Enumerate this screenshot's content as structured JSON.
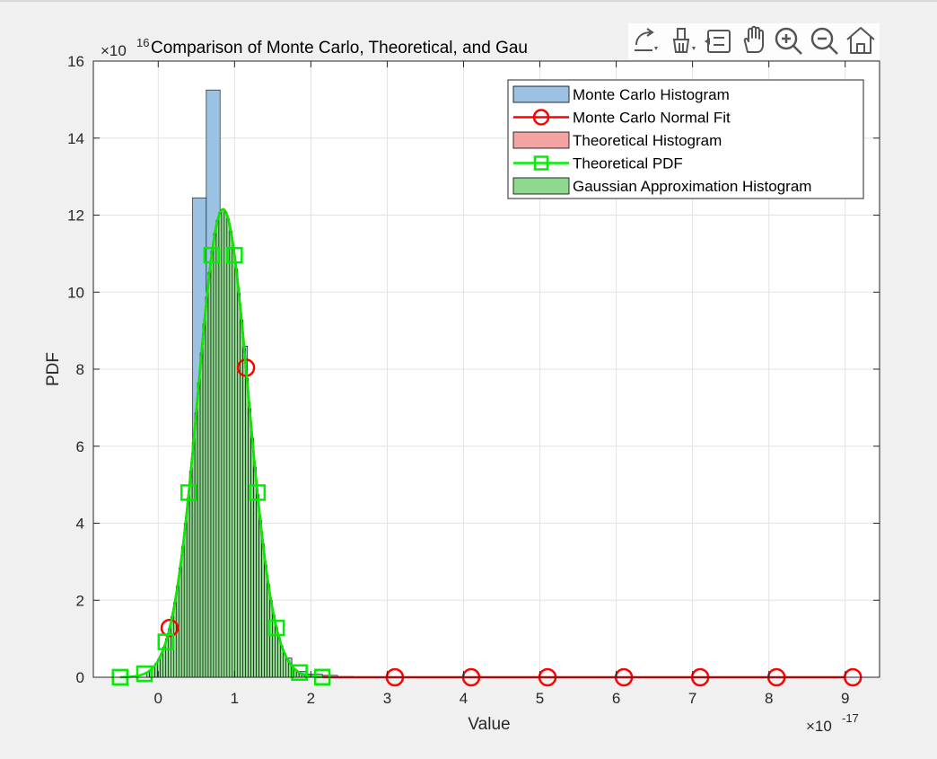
{
  "figure": {
    "toolbar": {
      "buttons": [
        {
          "name": "export-icon"
        },
        {
          "name": "brush-icon"
        },
        {
          "name": "datatip-icon"
        },
        {
          "name": "pan-hand-icon"
        },
        {
          "name": "zoom-in-icon"
        },
        {
          "name": "zoom-out-icon"
        },
        {
          "name": "home-icon"
        }
      ]
    }
  },
  "chart_data": {
    "type": "bar",
    "title": "Comparison of Monte Carlo, Theoretical, and Gau",
    "xlabel": "Value",
    "ylabel": "PDF",
    "x_multiplier": {
      "base": "×10",
      "exponent": "-17"
    },
    "y_multiplier": {
      "base": "×10",
      "exponent": "16"
    },
    "xlim": [
      -0.85,
      9.45
    ],
    "ylim": [
      0,
      16
    ],
    "x_ticks": [
      0,
      1,
      2,
      3,
      4,
      5,
      6,
      7,
      8,
      9
    ],
    "y_ticks": [
      0,
      2,
      4,
      6,
      8,
      10,
      12,
      14,
      16
    ],
    "grid": true,
    "legend_position": "top-right",
    "colors": {
      "monte_carlo_hist": "#9bc2e2",
      "normal_fit": "#ff0000",
      "theoretical_hist": "#f4a3a3",
      "theoretical_pdf": "#00ee00",
      "gaussian_hist": "#8fd88f",
      "edge": "#000000"
    },
    "legend": [
      {
        "label": "Monte Carlo Histogram",
        "kind": "patch",
        "color": "#9bc2e2"
      },
      {
        "label": "Monte Carlo Normal Fit",
        "kind": "line-circle",
        "color": "#ff0000"
      },
      {
        "label": "Theoretical Histogram",
        "kind": "patch",
        "color": "#f4a3a3"
      },
      {
        "label": "Theoretical PDF",
        "kind": "line-square",
        "color": "#00ee00"
      },
      {
        "label": "Gaussian Approximation Histogram",
        "kind": "patch",
        "color": "#8fd88f"
      }
    ],
    "monte_carlo_histogram": {
      "bin_edges": [
        -0.1,
        0.1,
        0.25,
        0.45,
        0.63,
        0.81,
        0.99,
        1.17,
        1.35,
        1.55,
        1.75,
        1.95,
        2.15,
        2.35,
        2.55
      ],
      "values": [
        0.1,
        0.75,
        2.2,
        12.45,
        15.25,
        11.0,
        8.6,
        3.55,
        1.2,
        0.5,
        0.15,
        0.08,
        0.05,
        0.02
      ]
    },
    "gaussian_histogram": {
      "bin_width": 0.035,
      "x_start": -0.15,
      "x_end": 1.95,
      "mean": 0.85,
      "sd": 0.33,
      "peak": 12.15
    },
    "monte_carlo_normal_fit": {
      "mean": 0.85,
      "sd": 0.33,
      "peak": 12.15,
      "line_x_range": [
        0,
        9
      ],
      "markers_x": [
        0.15,
        1.15,
        3.1,
        4.1,
        5.1,
        6.1,
        7.1,
        8.1,
        9.1
      ]
    },
    "theoretical_pdf": {
      "mean": 0.85,
      "sd": 0.33,
      "peak": 12.15,
      "x_range": [
        -0.5,
        2.15
      ],
      "markers_x": [
        -0.5,
        -0.18,
        0.1,
        0.4,
        0.7,
        1.0,
        1.3,
        1.55,
        1.85,
        2.15
      ]
    }
  }
}
